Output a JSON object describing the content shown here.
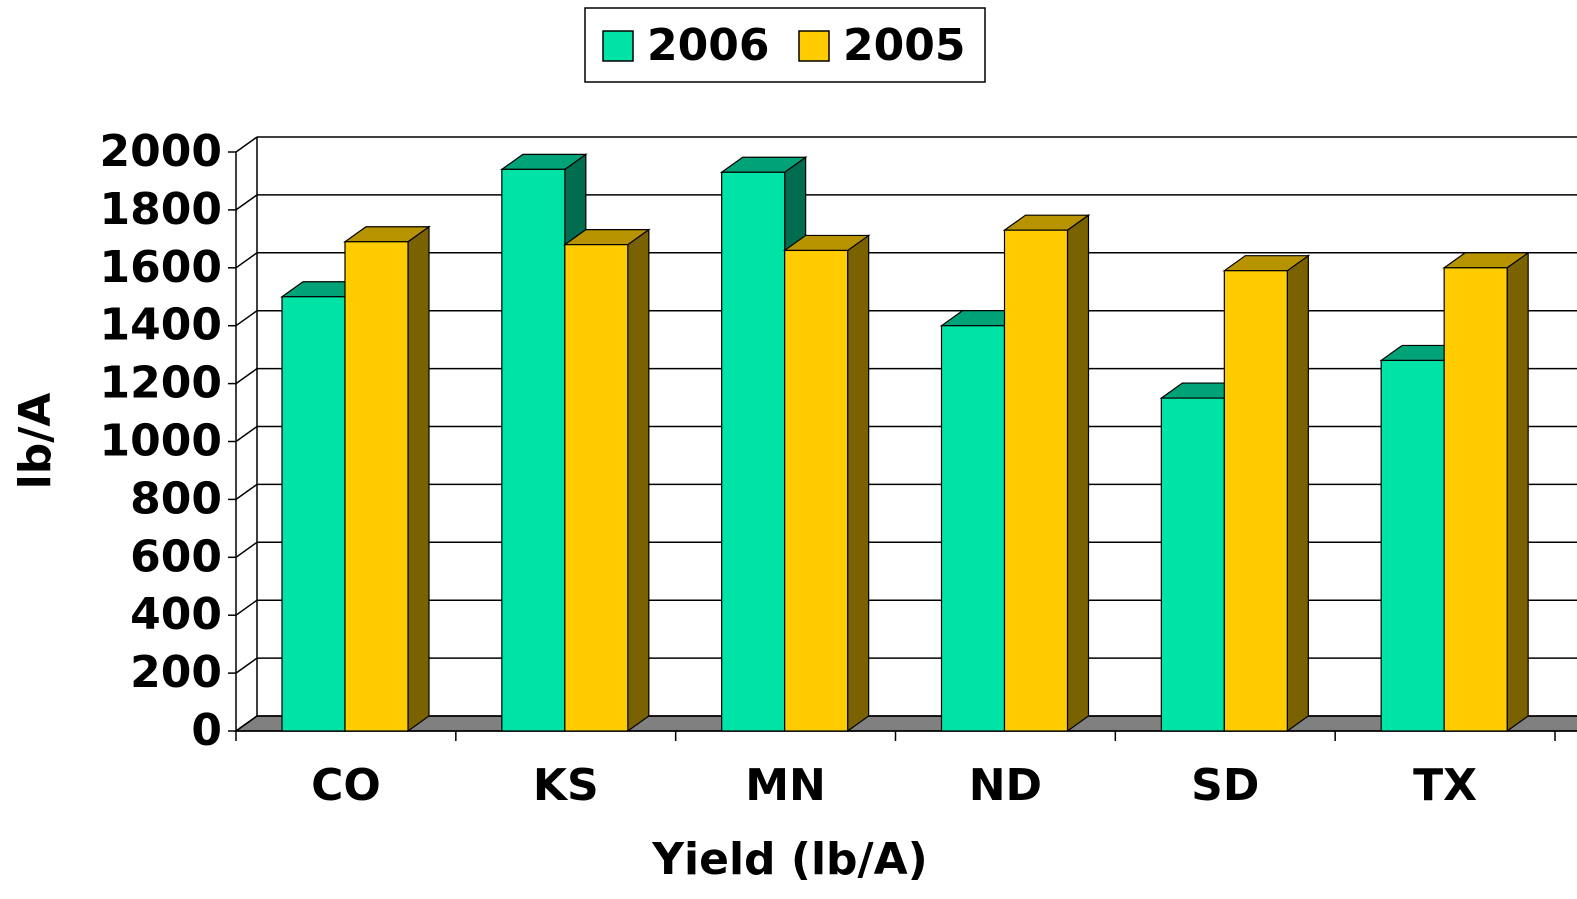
{
  "chart_data": {
    "type": "bar3d",
    "x_label": "Yield (lb/A)",
    "y_label": "lb/A",
    "categories": [
      "CO",
      "KS",
      "MN",
      "ND",
      "SD",
      "TX"
    ],
    "series": [
      {
        "name": "2006",
        "color": "#00e3a6",
        "values": [
          1500,
          1940,
          1930,
          1400,
          1150,
          1280
        ]
      },
      {
        "name": "2005",
        "color": "#ffcc00",
        "values": [
          1690,
          1680,
          1660,
          1730,
          1590,
          1600
        ]
      }
    ],
    "ylim": [
      0,
      2000
    ],
    "yticks": [
      0,
      200,
      400,
      600,
      800,
      1000,
      1200,
      1400,
      1600,
      1800,
      2000
    ],
    "grid": true,
    "legend": "top"
  }
}
